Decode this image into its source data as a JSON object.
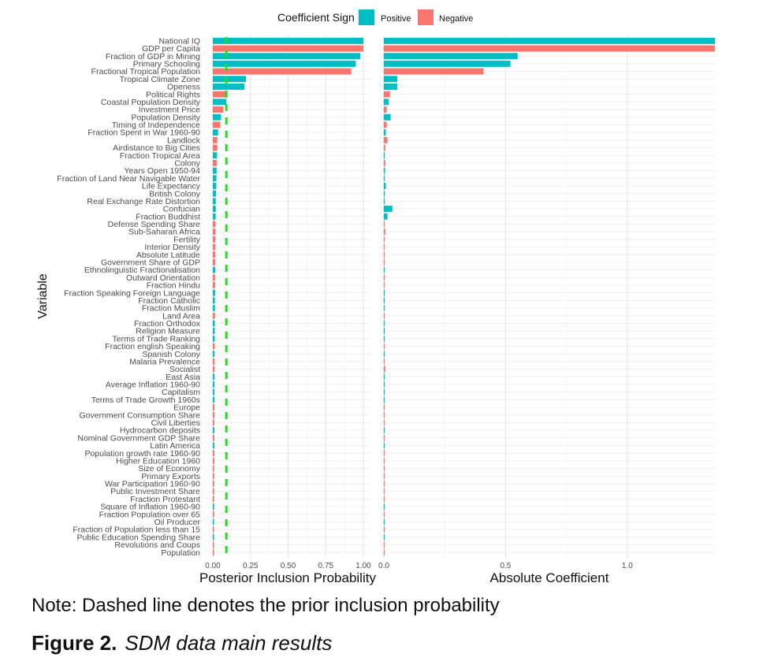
{
  "chart_data": {
    "type": "bar",
    "title": "",
    "ylabel": "Variable",
    "legend": {
      "title": "Coefficient Sign",
      "entries": [
        {
          "label": "Positive",
          "color": "#00BFC4"
        },
        {
          "label": "Negative",
          "color": "#F8766D"
        }
      ],
      "placement": "top"
    },
    "categories": [
      "National IQ",
      "GDP per Capita",
      "Fraction of GDP in Mining",
      "Primary Schooling",
      "Fractional Tropical Population",
      "Tropical Climate Zone",
      "Openess",
      "Political Rights",
      "Coastal Population Density",
      "Investment Price",
      "Population Density",
      "Timing of Independence",
      "Fraction Spent in War 1960-90",
      "Landlock",
      "Airdistance to Big Cities",
      "Fraction Tropical Area",
      "Colony",
      "Years Open 1950-94",
      "Fraction of Land Near Navigable Water",
      "Life Expectancy",
      "British Colony",
      "Real Exchange Rate Distortion",
      "Confucian",
      "Fraction Buddhist",
      "Defense Spending Share",
      "Sub-Saharan Africa",
      "Fertility",
      "Interior Density",
      "Absolute Latitude",
      "Government Share of GDP",
      "Ethnolinguistic Fractionalisation",
      "Outward Orientation",
      "Fraction Hindu",
      "Fraction Speaking Foreign Language",
      "Fraction Catholic",
      "Fraction Muslim",
      "Land Area",
      "Fraction Orthodox",
      "Religion Measure",
      "Terms of Trade Ranking",
      "Fraction english Speaking",
      "Spanish Colony",
      "Malaria Prevalence",
      "Socialist",
      "East Asia",
      "Average Inflation 1960-90",
      "Capitalism",
      "Terms of Trade Growth 1960s",
      "Europe",
      "Government Consumption Share",
      "Civil Liberties",
      "Hydrocarbon deposits",
      "Nominal Government GDP Share",
      "Latin America",
      "Population growth rate 1960-90",
      "Higher Education 1960",
      "Size of Economy",
      "Primary Exports",
      "War Participation 1960-90",
      "Public Investment Share",
      "Fraction Protestant",
      "Square of Inflation 1960-90",
      "Fraction Population over 65",
      "Oil Producer",
      "Fraction of Population less than 15",
      "Public Education Spending Share",
      "Revolutions and Coups",
      "Population"
    ],
    "signs": [
      "Positive",
      "Negative",
      "Positive",
      "Positive",
      "Negative",
      "Positive",
      "Positive",
      "Negative",
      "Positive",
      "Negative",
      "Positive",
      "Negative",
      "Positive",
      "Negative",
      "Negative",
      "Positive",
      "Negative",
      "Positive",
      "Positive",
      "Positive",
      "Positive",
      "Positive",
      "Positive",
      "Positive",
      "Negative",
      "Negative",
      "Negative",
      "Negative",
      "Negative",
      "Negative",
      "Positive",
      "Negative",
      "Negative",
      "Positive",
      "Positive",
      "Positive",
      "Negative",
      "Positive",
      "Positive",
      "Positive",
      "Negative",
      "Positive",
      "Negative",
      "Negative",
      "Positive",
      "Positive",
      "Positive",
      "Positive",
      "Negative",
      "Negative",
      "Negative",
      "Positive",
      "Negative",
      "Positive",
      "Negative",
      "Negative",
      "Negative",
      "Negative",
      "Negative",
      "Negative",
      "Negative",
      "Positive",
      "Negative",
      "Positive",
      "Negative",
      "Positive",
      "Negative",
      "Negative"
    ],
    "panels": [
      {
        "xlabel": "Posterior Inclusion Probability",
        "xlim": [
          0,
          1.0
        ],
        "ticks": [
          0,
          0.25,
          0.5,
          0.75,
          1.0
        ],
        "tick_labels": [
          "0.00",
          "0.25",
          "0.50",
          "0.75",
          "1.00"
        ],
        "prior_line": {
          "value": 0.09,
          "color": "#22DD22",
          "style": "dashed"
        },
        "values": [
          1.0,
          1.0,
          0.98,
          0.95,
          0.92,
          0.22,
          0.21,
          0.09,
          0.09,
          0.07,
          0.055,
          0.05,
          0.035,
          0.03,
          0.03,
          0.028,
          0.026,
          0.025,
          0.024,
          0.023,
          0.022,
          0.02,
          0.02,
          0.019,
          0.018,
          0.018,
          0.017,
          0.017,
          0.016,
          0.016,
          0.016,
          0.015,
          0.015,
          0.015,
          0.014,
          0.014,
          0.014,
          0.013,
          0.013,
          0.013,
          0.013,
          0.012,
          0.012,
          0.012,
          0.012,
          0.011,
          0.011,
          0.011,
          0.011,
          0.011,
          0.01,
          0.01,
          0.01,
          0.01,
          0.01,
          0.01,
          0.009,
          0.009,
          0.009,
          0.009,
          0.009,
          0.009,
          0.009,
          0.008,
          0.008,
          0.008,
          0.008,
          0.008
        ]
      },
      {
        "xlabel": "Absolute Coefficient",
        "xlim": [
          0,
          1.36
        ],
        "ticks": [
          0,
          0.5,
          1.0
        ],
        "tick_labels": [
          "0.0",
          "0.5",
          "1.0"
        ],
        "values": [
          1.36,
          1.36,
          0.55,
          0.52,
          0.41,
          0.055,
          0.055,
          0.025,
          0.02,
          0.012,
          0.028,
          0.012,
          0.008,
          0.015,
          0.006,
          0.004,
          0.006,
          0.005,
          0.003,
          0.008,
          0.004,
          0.003,
          0.035,
          0.015,
          0.002,
          0.006,
          0.002,
          0.002,
          0.002,
          0.002,
          0.001,
          0.004,
          0.002,
          0.001,
          0.001,
          0.001,
          0.001,
          0.002,
          0.001,
          0.001,
          0.004,
          0.001,
          0.003,
          0.006,
          0.003,
          0.001,
          0.001,
          0.002,
          0.001,
          0.001,
          0.002,
          0.001,
          0.002,
          0.001,
          0.002,
          0.002,
          0.001,
          0.001,
          0.001,
          0.001,
          0.003,
          0.001,
          0.001,
          0.002,
          0.001,
          0.001,
          0.001,
          0.001
        ]
      }
    ]
  },
  "note": "Note: Dashed line denotes the prior inclusion probability",
  "caption": {
    "label": "Figure 2.",
    "title": "SDM data main results"
  }
}
